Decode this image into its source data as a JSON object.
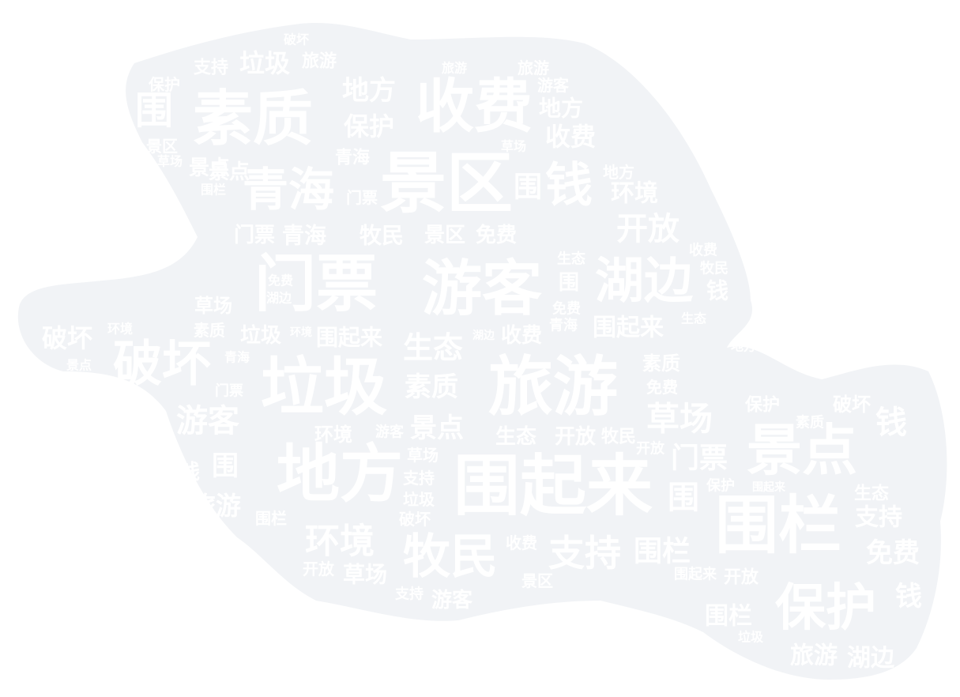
{
  "colors": {
    "background": "#ffffff",
    "shape_fill": "#f1f3f6",
    "word_color": "#ffffff"
  },
  "words": [
    {
      "text": "围起来",
      "weight": 100
    },
    {
      "text": "旅游",
      "weight": 96
    },
    {
      "text": "游客",
      "weight": 92
    },
    {
      "text": "门票",
      "weight": 92
    },
    {
      "text": "素质",
      "weight": 92
    },
    {
      "text": "景区",
      "weight": 90
    },
    {
      "text": "垃圾",
      "weight": 90
    },
    {
      "text": "地方",
      "weight": 90
    },
    {
      "text": "围栏",
      "weight": 88
    },
    {
      "text": "收费",
      "weight": 84
    },
    {
      "text": "景点",
      "weight": 84
    },
    {
      "text": "保护",
      "weight": 80
    },
    {
      "text": "破坏",
      "weight": 78
    },
    {
      "text": "湖边",
      "weight": 74
    },
    {
      "text": "牧民",
      "weight": 72
    },
    {
      "text": "青海",
      "weight": 70
    },
    {
      "text": "钱",
      "weight": 64
    },
    {
      "text": "支持",
      "weight": 56
    },
    {
      "text": "环境",
      "weight": 54
    },
    {
      "text": "草场",
      "weight": 52
    },
    {
      "text": "开放",
      "weight": 48
    },
    {
      "text": "生态",
      "weight": 46
    },
    {
      "text": "免费",
      "weight": 44
    },
    {
      "text": "围",
      "weight": 42
    }
  ]
}
